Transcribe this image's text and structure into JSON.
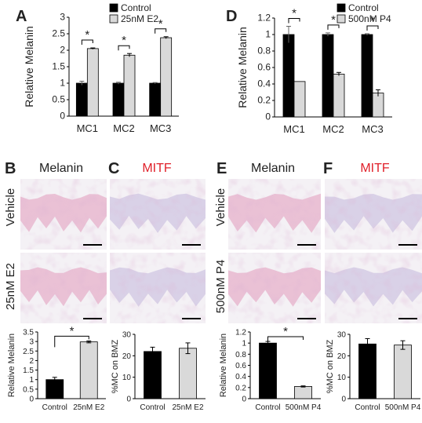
{
  "colors": {
    "control": "#000000",
    "treated": "#d9d9d9",
    "mitf_header": "#e0202a",
    "stain_pink": "#e7b9cf",
    "stain_purple": "#a879b4"
  },
  "panel_letters": {
    "A": "A",
    "B": "B",
    "C": "C",
    "D": "D",
    "E": "E",
    "F": "F"
  },
  "histology": {
    "b_header": "Melanin",
    "c_header": "MITF",
    "e_header": "Melanin",
    "f_header": "MITF",
    "left_rows": [
      "Vehicle",
      "25nM E2"
    ],
    "right_rows": [
      "Vehicle",
      "500nM P4"
    ],
    "image_names": [
      "melanin-vehicle-e2",
      "mitf-vehicle-e2",
      "melanin-25nM-E2",
      "mitf-25nM-E2",
      "melanin-vehicle-p4",
      "mitf-vehicle-p4",
      "melanin-500nM-P4",
      "mitf-500nM-P4"
    ]
  },
  "chart_data": [
    {
      "panel": "A",
      "type": "bar",
      "categories": [
        "MC1",
        "MC2",
        "MC3"
      ],
      "series": [
        {
          "name": "Control",
          "values": [
            1.0,
            1.0,
            1.0
          ],
          "errors": [
            0.06,
            0.03,
            0.02
          ]
        },
        {
          "name": "25nM E2",
          "values": [
            2.05,
            1.85,
            2.38
          ],
          "errors": [
            0.02,
            0.05,
            0.03
          ]
        }
      ],
      "ylabel": "Relative Melanin",
      "ylim": [
        0,
        3
      ],
      "yticks": [
        "0",
        "0.5",
        "1",
        "1.5",
        "2",
        "2.5",
        "3"
      ],
      "significance": [
        "*",
        "*",
        "*"
      ],
      "legend": "top-right"
    },
    {
      "panel": "D",
      "type": "bar",
      "categories": [
        "MC1",
        "MC2",
        "MC3"
      ],
      "series": [
        {
          "name": "Control",
          "values": [
            1.0,
            1.0,
            1.0
          ],
          "errors": [
            0.1,
            0.02,
            0.01
          ]
        },
        {
          "name": "500nM P4",
          "values": [
            0.43,
            0.52,
            0.29
          ],
          "errors": [
            0.0,
            0.02,
            0.04
          ]
        }
      ],
      "ylabel": "Relative Melanin",
      "ylim": [
        0,
        1.2
      ],
      "yticks": [
        "0",
        "0.2",
        "0.4",
        "0.6",
        "0.8",
        "1",
        "1.2"
      ],
      "significance": [
        "*",
        "*",
        "*"
      ],
      "legend": "top-right"
    },
    {
      "panel": "B",
      "type": "bar",
      "categories": [
        "Control",
        "25nM E2"
      ],
      "values": [
        1.0,
        2.98
      ],
      "errors": [
        0.12,
        0.05
      ],
      "ylabel": "Relative Melanin",
      "ylim": [
        0,
        3.5
      ],
      "yticks": [
        "0",
        "0.5",
        "1",
        "1.5",
        "2",
        "2.5",
        "3",
        "3.5"
      ],
      "significance": "*"
    },
    {
      "panel": "C",
      "type": "bar",
      "categories": [
        "Control",
        "25nM E2"
      ],
      "values": [
        22,
        23.5
      ],
      "errors": [
        2,
        2.5
      ],
      "ylabel": "%MC on BMZ",
      "ylim": [
        0,
        30
      ],
      "yticks": [
        "0",
        "10",
        "20",
        "30"
      ]
    },
    {
      "panel": "E",
      "type": "bar",
      "categories": [
        "Control",
        "500nM P4"
      ],
      "values": [
        1.0,
        0.22
      ],
      "errors": [
        0.03,
        0.01
      ],
      "ylabel": "Relative Melanin",
      "ylim": [
        0,
        1.2
      ],
      "yticks": [
        "0",
        "0.2",
        "0.4",
        "0.6",
        "0.8",
        "1",
        "1.2"
      ],
      "significance": "*"
    },
    {
      "panel": "F",
      "type": "bar",
      "categories": [
        "Control",
        "500nM P4"
      ],
      "values": [
        25.5,
        25
      ],
      "errors": [
        2.5,
        2
      ],
      "ylabel": "%MC on BMZ",
      "ylim": [
        0,
        30
      ],
      "yticks": [
        "0",
        "10",
        "20",
        "30"
      ]
    }
  ]
}
